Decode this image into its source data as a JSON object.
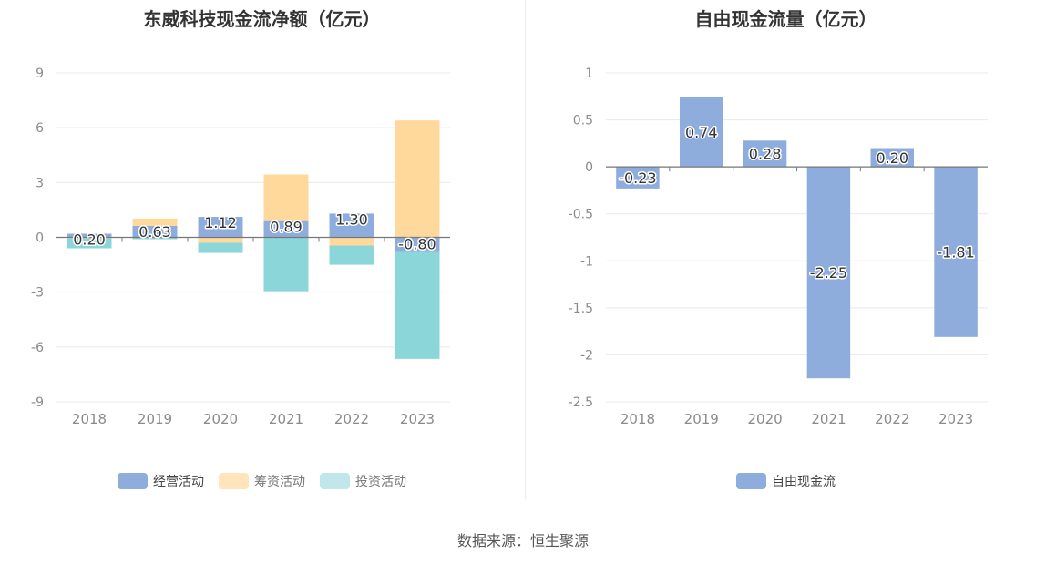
{
  "charts": {
    "left": {
      "title": "东威科技现金流净额（亿元）",
      "legend": [
        {
          "label": "经营活动",
          "color": "#8eaddc"
        },
        {
          "label": "筹资活动",
          "color": "#ffd89c"
        },
        {
          "label": "投资活动",
          "color": "#c1e7ea"
        }
      ]
    },
    "right": {
      "title": "自由现金流量（亿元）",
      "legend": [
        {
          "label": "自由现金流",
          "color": "#8eaddc"
        }
      ]
    }
  },
  "source": "数据来源：恒生聚源",
  "chart_data": [
    {
      "type": "bar",
      "stacked": true,
      "title": "东威科技现金流净额（亿元）",
      "categories": [
        "2018",
        "2019",
        "2020",
        "2021",
        "2022",
        "2023"
      ],
      "series": [
        {
          "name": "经营活动",
          "color": "#8eaddc",
          "values": [
            0.2,
            0.63,
            1.12,
            0.89,
            1.3,
            -0.8
          ],
          "data_labels": [
            "0.20",
            "0.63",
            "1.12",
            "0.89",
            "1.30",
            "-0.80"
          ]
        },
        {
          "name": "筹资活动",
          "color": "#ffd89c",
          "values": [
            -0.05,
            0.4,
            -0.3,
            2.55,
            -0.45,
            6.4
          ]
        },
        {
          "name": "投资活动",
          "color": "#8bd6d9",
          "values": [
            -0.55,
            -0.1,
            -0.55,
            -2.95,
            -1.05,
            -5.85
          ]
        }
      ],
      "ylim": [
        -9,
        9
      ],
      "yticks": [
        "9",
        "6",
        "3",
        "0",
        "-3",
        "-6",
        "-9"
      ],
      "ytick_values": [
        9,
        6,
        3,
        0,
        -3,
        -6,
        -9
      ],
      "grid": true,
      "legend_position": "bottom"
    },
    {
      "type": "bar",
      "title": "自由现金流量（亿元）",
      "categories": [
        "2018",
        "2019",
        "2020",
        "2021",
        "2022",
        "2023"
      ],
      "series": [
        {
          "name": "自由现金流",
          "color": "#8eaddc",
          "values": [
            -0.23,
            0.74,
            0.28,
            -2.25,
            0.2,
            -1.81
          ],
          "data_labels": [
            "-0.23",
            "0.74",
            "0.28",
            "-2.25",
            "0.20",
            "-1.81"
          ]
        }
      ],
      "ylim": [
        -2.5,
        1
      ],
      "yticks": [
        "1",
        "0.5",
        "0",
        "-0.5",
        "-1",
        "-1.5",
        "-2",
        "-2.5"
      ],
      "ytick_values": [
        1,
        0.5,
        0,
        -0.5,
        -1,
        -1.5,
        -2,
        -2.5
      ],
      "grid": true,
      "legend_position": "bottom"
    }
  ]
}
